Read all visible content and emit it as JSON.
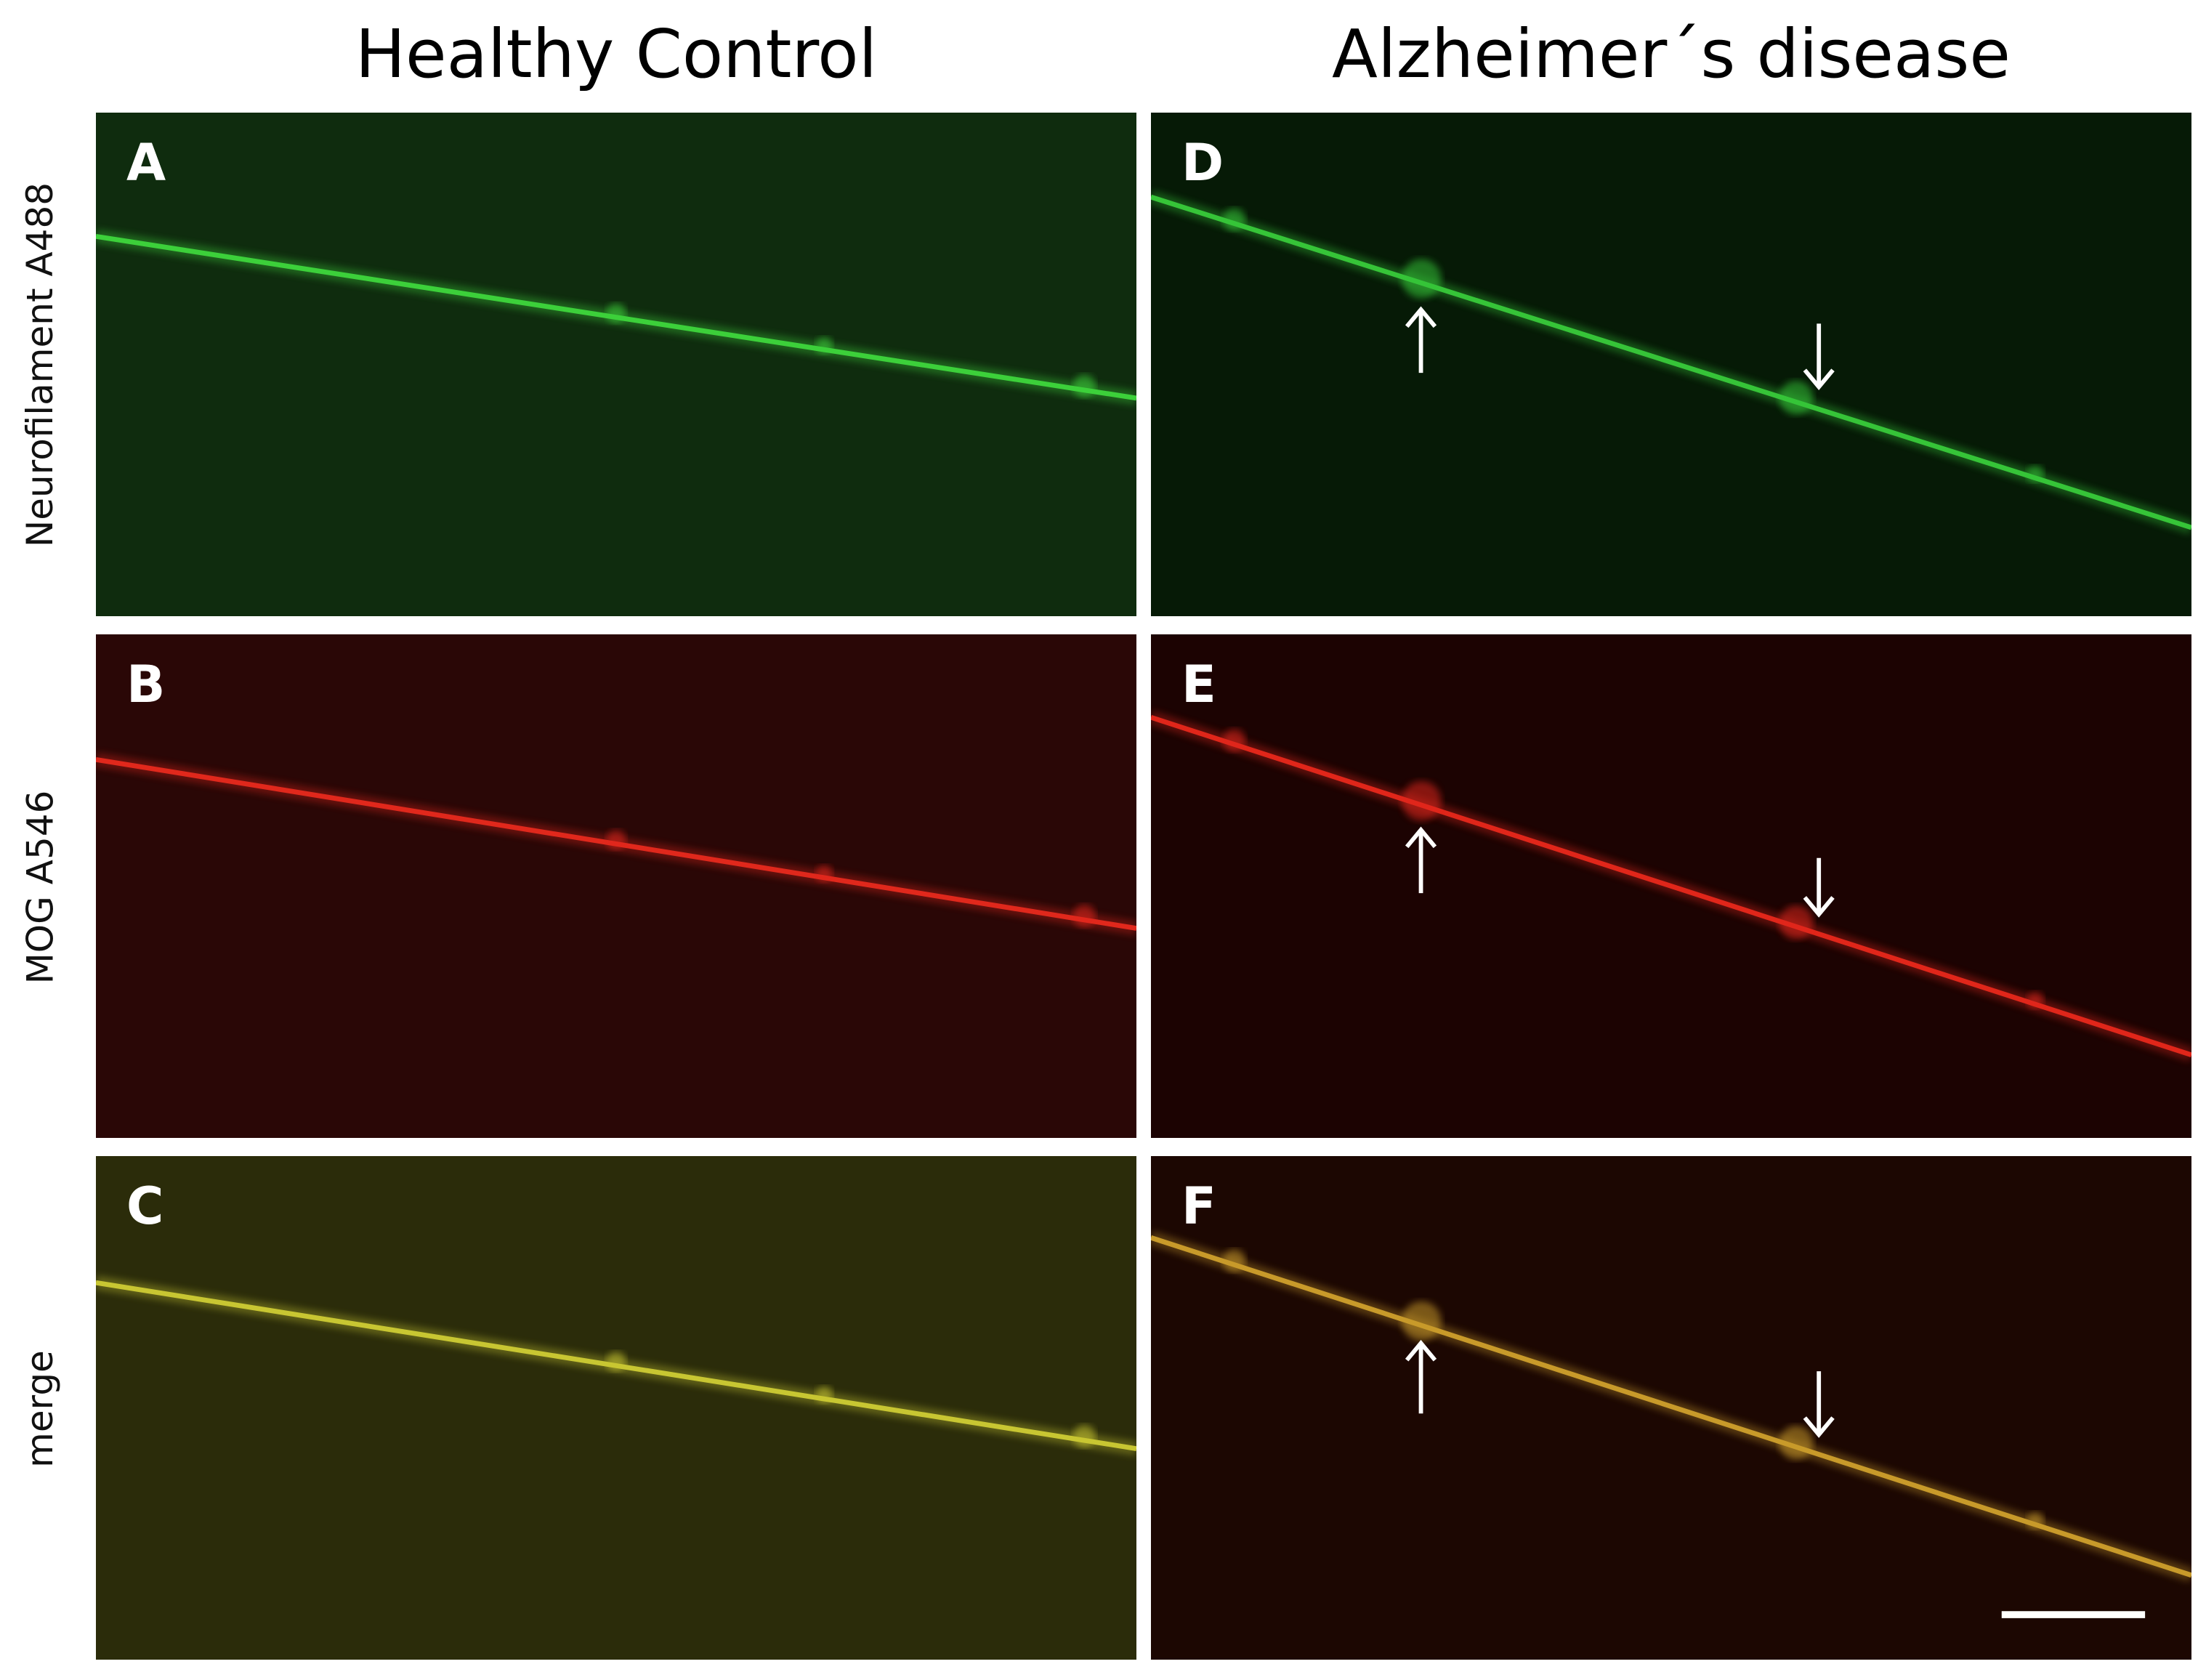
{
  "columns": [
    {
      "title": "Healthy Control"
    },
    {
      "title": "Alzheimer´s disease"
    }
  ],
  "rows": [
    {
      "label": "Neurofilament A488"
    },
    {
      "label": "MOG A546"
    },
    {
      "label": "merge"
    }
  ],
  "panels": [
    {
      "letter": "A",
      "channel": "green",
      "bg": "#0f2c0e",
      "fiber": "#3cd03a",
      "arrows": false
    },
    {
      "letter": "B",
      "channel": "red",
      "bg": "#2a0706",
      "fiber": "#e0281c",
      "arrows": false
    },
    {
      "letter": "C",
      "channel": "merge",
      "bg": "#2b2c0a",
      "fiber": "#c8c632",
      "arrows": false
    },
    {
      "letter": "D",
      "channel": "green",
      "bg": "#061a06",
      "fiber": "#36c438",
      "arrows": true
    },
    {
      "letter": "E",
      "channel": "red",
      "bg": "#1c0302",
      "fiber": "#e0261a",
      "arrows": true
    },
    {
      "letter": "F",
      "channel": "merge",
      "bg": "#1c0702",
      "fiber": "#c89a2a",
      "arrows": true,
      "scale_bar": true
    }
  ]
}
